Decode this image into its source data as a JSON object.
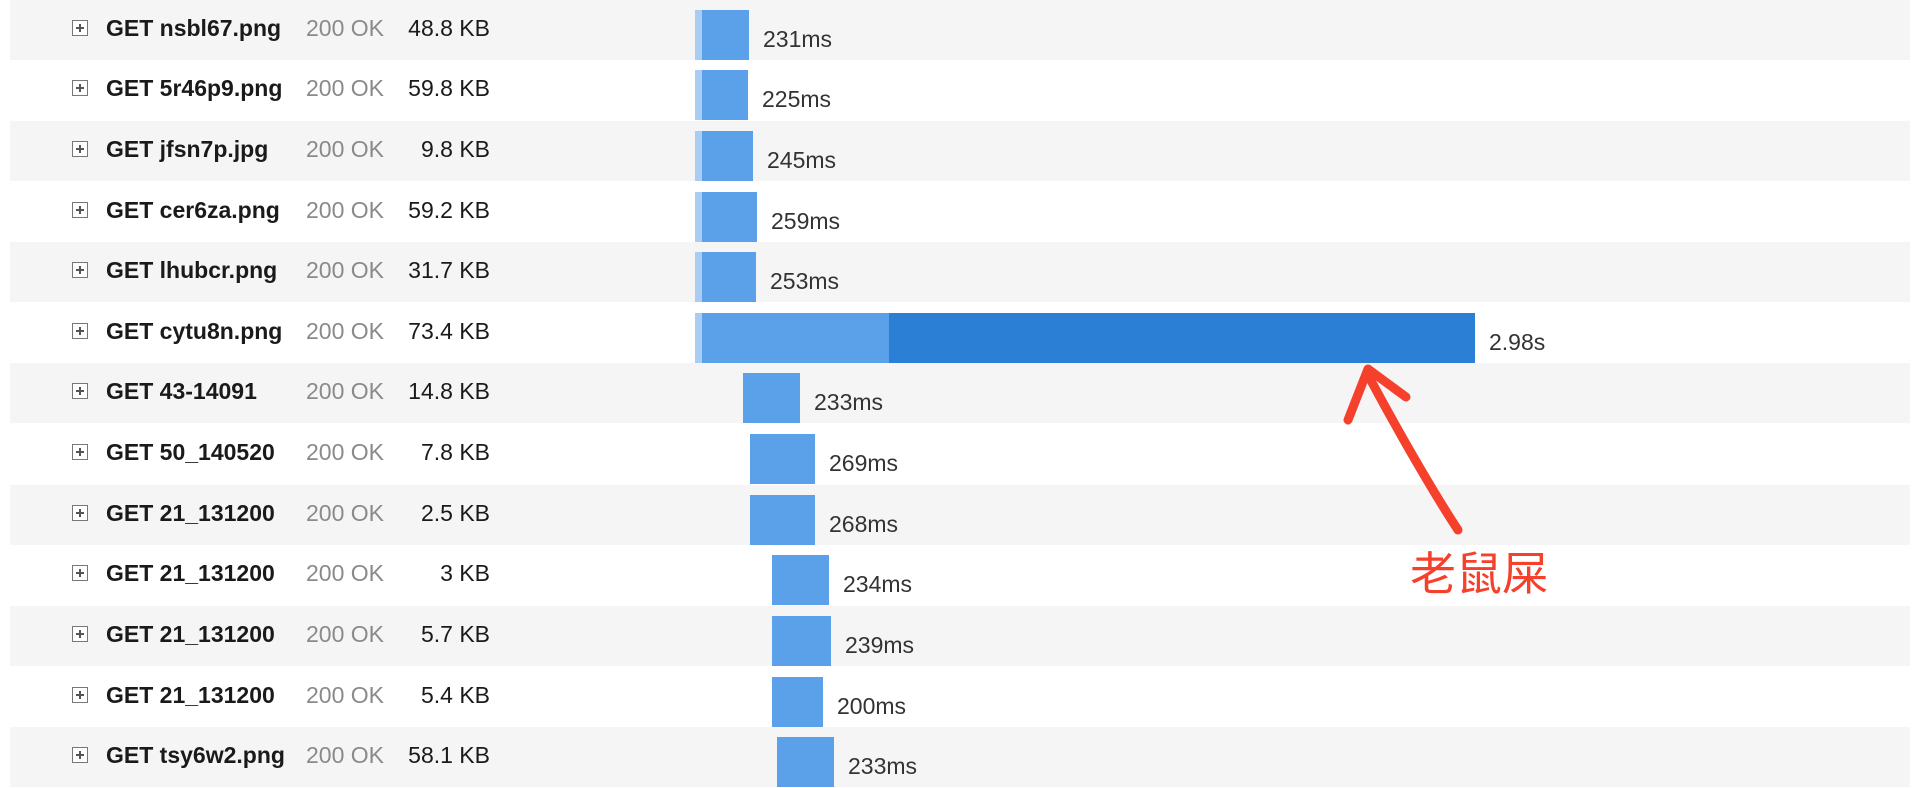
{
  "requests": [
    {
      "url": "GET nsbl67.png",
      "status": "200 OK",
      "size": "48.8 KB",
      "time": "231ms"
    },
    {
      "url": "GET 5r46p9.png",
      "status": "200 OK",
      "size": "59.8 KB",
      "time": "225ms"
    },
    {
      "url": "GET jfsn7p.jpg",
      "status": "200 OK",
      "size": "9.8 KB",
      "time": "245ms"
    },
    {
      "url": "GET cer6za.png",
      "status": "200 OK",
      "size": "59.2 KB",
      "time": "259ms"
    },
    {
      "url": "GET lhubcr.png",
      "status": "200 OK",
      "size": "31.7 KB",
      "time": "253ms"
    },
    {
      "url": "GET cytu8n.png",
      "status": "200 OK",
      "size": "73.4 KB",
      "time": "2.98s"
    },
    {
      "url": "GET 43-14091",
      "status": "200 OK",
      "size": "14.8 KB",
      "time": "233ms"
    },
    {
      "url": "GET 50_140520",
      "status": "200 OK",
      "size": "7.8 KB",
      "time": "269ms"
    },
    {
      "url": "GET 21_131200",
      "status": "200 OK",
      "size": "2.5 KB",
      "time": "268ms"
    },
    {
      "url": "GET 21_131200",
      "status": "200 OK",
      "size": "3 KB",
      "time": "234ms"
    },
    {
      "url": "GET 21_131200",
      "status": "200 OK",
      "size": "5.7 KB",
      "time": "239ms"
    },
    {
      "url": "GET 21_131200",
      "status": "200 OK",
      "size": "5.4 KB",
      "time": "200ms"
    },
    {
      "url": "GET tsy6w2.png",
      "status": "200 OK",
      "size": "58.1 KB",
      "time": "233ms"
    }
  ],
  "annotation": {
    "text": "老鼠屎",
    "color": "#f5402c"
  },
  "colors": {
    "bar": "#5aa1ea",
    "bar_wait": "#a9cdf2",
    "bar_receive": "#2b7fd4",
    "row_alt": "#f5f5f5"
  }
}
